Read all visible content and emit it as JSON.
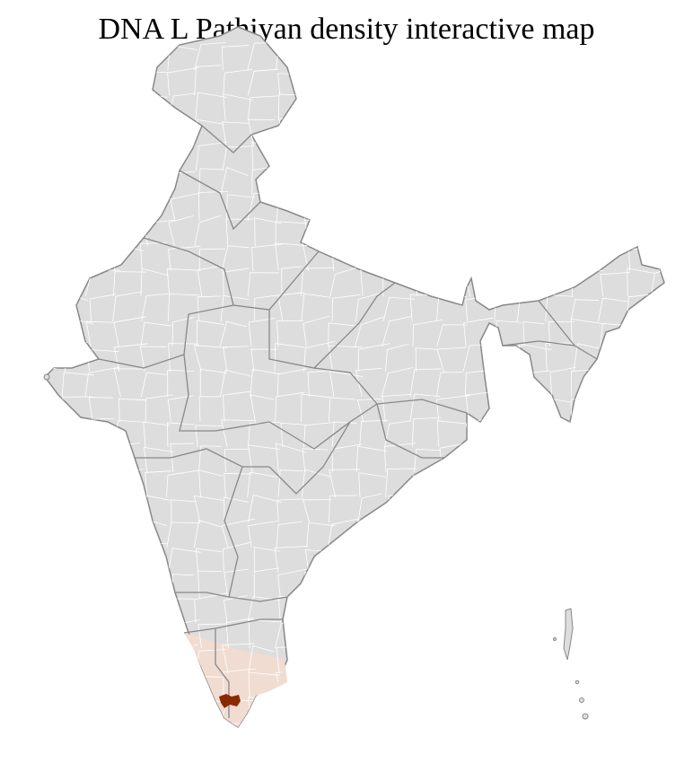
{
  "title": "DNA L Pathiyan density interactive map",
  "colors": {
    "land": "#dddddd",
    "state_border": "#888888",
    "district_border": "#ffffff",
    "region_highlight": "#f0dcd1",
    "district_highlight": "#8b2a00"
  },
  "highlighted_region": "southern states",
  "highlighted_district": "dark red district in the far south"
}
